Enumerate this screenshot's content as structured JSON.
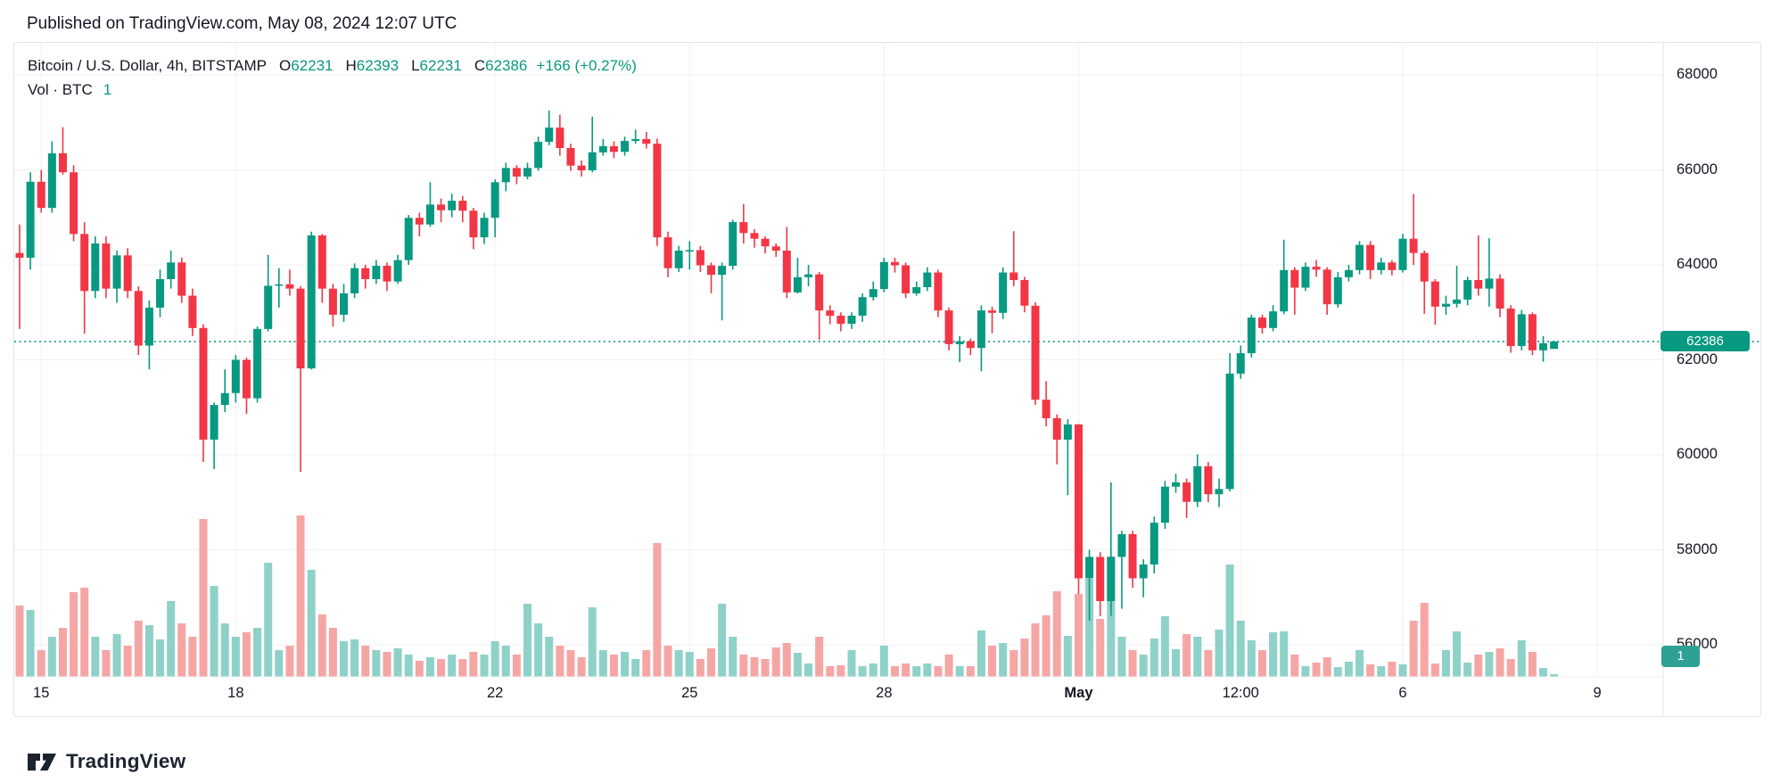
{
  "header": {
    "published_line": "Published on TradingView.com, May 08, 2024 12:07 UTC"
  },
  "legend": {
    "symbol_line": {
      "title": "Bitcoin / U.S. Dollar, 4h, BITSTAMP",
      "o_label": "O",
      "o": "62231",
      "h_label": "H",
      "h": "62393",
      "l_label": "L",
      "l": "62231",
      "c_label": "C",
      "c": "62386",
      "change": "+166 (+0.27%)"
    },
    "volume_line": {
      "label": "Vol · BTC",
      "value": "1"
    }
  },
  "price_axis": {
    "levels": [
      68000,
      66000,
      64000,
      62000,
      60000,
      58000,
      56000
    ],
    "last_price_badge": "62386",
    "volume_badge": "1"
  },
  "time_axis": {
    "ticks": [
      {
        "label": "15",
        "candle_index": 2,
        "bold": false
      },
      {
        "label": "18",
        "candle_index": 20,
        "bold": false
      },
      {
        "label": "22",
        "candle_index": 44,
        "bold": false
      },
      {
        "label": "25",
        "candle_index": 62,
        "bold": false
      },
      {
        "label": "28",
        "candle_index": 80,
        "bold": false
      },
      {
        "label": "May",
        "candle_index": 98,
        "bold": true
      },
      {
        "label": "12:00",
        "candle_index": 113,
        "bold": false
      },
      {
        "label": "6",
        "candle_index": 128,
        "bold": false
      },
      {
        "label": "9",
        "candle_index": 146,
        "bold": false
      }
    ]
  },
  "footer": {
    "brand": "TradingView"
  },
  "colors": {
    "up": "#089981",
    "down": "#f23645",
    "vol_up": "#8ed1c8",
    "vol_down": "#f5a6a4",
    "grid": "#f0f1f4",
    "border": "#e0e3eb",
    "text": "#131722",
    "price_line": "#089981",
    "price_badge_bg": "#089981",
    "vol_badge_bg": "#2da193"
  },
  "chart_data": {
    "type": "candlestick+volume",
    "symbol": "Bitcoin / U.S. Dollar",
    "exchange": "BITSTAMP",
    "interval": "4h",
    "title": "Bitcoin / U.S. Dollar, 4h, BITSTAMP",
    "ohlc_display": {
      "open": 62231,
      "high": 62393,
      "low": 62231,
      "close": 62386,
      "change": 166,
      "change_pct": 0.27
    },
    "last_close": 62386,
    "y_range_visible": [
      54500,
      68700
    ],
    "y_ticks": [
      56000,
      58000,
      60000,
      62000,
      64000,
      66000,
      68000
    ],
    "legend_position": "top-left",
    "grid": true,
    "volume_unit": "BTC (relative height, max=181)",
    "candle_fields": [
      "time",
      "open",
      "high",
      "low",
      "close",
      "vol"
    ],
    "candles": [
      [
        "Apr 14 16:00",
        64250,
        64850,
        62650,
        64150,
        80
      ],
      [
        "Apr 14 20:00",
        64150,
        65950,
        63900,
        65750,
        75
      ],
      [
        "Apr 15 00:00",
        65750,
        66000,
        65100,
        65200,
        30
      ],
      [
        "Apr 15 04:00",
        65200,
        66600,
        65100,
        66350,
        45
      ],
      [
        "Apr 15 08:00",
        66350,
        66900,
        65900,
        65950,
        55
      ],
      [
        "Apr 15 12:00",
        65950,
        66100,
        64500,
        64650,
        95
      ],
      [
        "Apr 15 16:00",
        64650,
        64900,
        62550,
        63450,
        100
      ],
      [
        "Apr 15 20:00",
        63450,
        64600,
        63300,
        64450,
        45
      ],
      [
        "Apr 16 00:00",
        64450,
        64600,
        63300,
        63500,
        30
      ],
      [
        "Apr 16 04:00",
        63500,
        64300,
        63200,
        64200,
        48
      ],
      [
        "Apr 16 08:00",
        64200,
        64350,
        63300,
        63450,
        35
      ],
      [
        "Apr 16 12:00",
        63450,
        63550,
        62100,
        62300,
        63
      ],
      [
        "Apr 16 16:00",
        62300,
        63250,
        61800,
        63100,
        58
      ],
      [
        "Apr 16 20:00",
        63100,
        63900,
        62900,
        63700,
        42
      ],
      [
        "Apr 17 00:00",
        63700,
        64300,
        63500,
        64050,
        85
      ],
      [
        "Apr 17 04:00",
        64050,
        64150,
        63200,
        63350,
        60
      ],
      [
        "Apr 17 08:00",
        63350,
        63500,
        62500,
        62670,
        45
      ],
      [
        "Apr 17 12:00",
        62670,
        62750,
        59850,
        60320,
        177
      ],
      [
        "Apr 17 16:00",
        60320,
        61100,
        59700,
        61050,
        102
      ],
      [
        "Apr 17 20:00",
        61050,
        61800,
        60900,
        61300,
        60
      ],
      [
        "Apr 18 00:00",
        61300,
        62100,
        61100,
        62000,
        45
      ],
      [
        "Apr 18 04:00",
        62000,
        62050,
        60860,
        61190,
        50
      ],
      [
        "Apr 18 08:00",
        61190,
        62700,
        61100,
        62650,
        55
      ],
      [
        "Apr 18 12:00",
        62650,
        64210,
        62600,
        63560,
        128
      ],
      [
        "Apr 18 16:00",
        63560,
        63930,
        63100,
        63590,
        30
      ],
      [
        "Apr 18 20:00",
        63590,
        63900,
        63350,
        63500,
        35
      ],
      [
        "Apr 19 00:00",
        63500,
        63550,
        59640,
        61820,
        181
      ],
      [
        "Apr 19 04:00",
        61820,
        64700,
        61800,
        64620,
        120
      ],
      [
        "Apr 19 08:00",
        64620,
        64650,
        63200,
        63500,
        70
      ],
      [
        "Apr 19 12:00",
        63500,
        63600,
        62700,
        62950,
        55
      ],
      [
        "Apr 19 16:00",
        62950,
        63600,
        62800,
        63400,
        40
      ],
      [
        "Apr 19 20:00",
        63400,
        64030,
        63300,
        63930,
        42
      ],
      [
        "Apr 20 00:00",
        63930,
        64000,
        63500,
        63700,
        35
      ],
      [
        "Apr 20 04:00",
        63700,
        64100,
        63600,
        63980,
        30
      ],
      [
        "Apr 20 08:00",
        63980,
        64050,
        63450,
        63650,
        28
      ],
      [
        "Apr 20 12:00",
        63650,
        64210,
        63600,
        64100,
        32
      ],
      [
        "Apr 20 16:00",
        64100,
        65050,
        64000,
        64990,
        25
      ],
      [
        "Apr 20 20:00",
        64990,
        65100,
        64600,
        64850,
        18
      ],
      [
        "Apr 21 00:00",
        64850,
        65740,
        64800,
        65270,
        22
      ],
      [
        "Apr 21 04:00",
        65270,
        65400,
        64900,
        65150,
        20
      ],
      [
        "Apr 21 08:00",
        65150,
        65500,
        65000,
        65350,
        25
      ],
      [
        "Apr 21 12:00",
        65350,
        65450,
        64900,
        65140,
        20
      ],
      [
        "Apr 21 16:00",
        65140,
        65200,
        64330,
        64580,
        28
      ],
      [
        "Apr 21 20:00",
        64580,
        65100,
        64440,
        64990,
        25
      ],
      [
        "Apr 22 00:00",
        64990,
        65800,
        64580,
        65740,
        40
      ],
      [
        "Apr 22 04:00",
        65740,
        66150,
        65550,
        66040,
        35
      ],
      [
        "Apr 22 08:00",
        66040,
        66100,
        65700,
        65860,
        25
      ],
      [
        "Apr 22 12:00",
        65860,
        66150,
        65800,
        66040,
        82
      ],
      [
        "Apr 22 16:00",
        66040,
        66700,
        65980,
        66590,
        60
      ],
      [
        "Apr 22 20:00",
        66590,
        67250,
        66520,
        66890,
        45
      ],
      [
        "Apr 23 00:00",
        66890,
        67160,
        66300,
        66460,
        35
      ],
      [
        "Apr 23 04:00",
        66460,
        66550,
        65980,
        66090,
        30
      ],
      [
        "Apr 23 08:00",
        66090,
        66200,
        65860,
        65990,
        22
      ],
      [
        "Apr 23 12:00",
        65990,
        67120,
        65950,
        66370,
        78
      ],
      [
        "Apr 23 16:00",
        66370,
        66650,
        66300,
        66500,
        30
      ],
      [
        "Apr 23 20:00",
        66500,
        66600,
        66250,
        66380,
        25
      ],
      [
        "Apr 24 00:00",
        66380,
        66700,
        66300,
        66610,
        28
      ],
      [
        "Apr 24 04:00",
        66610,
        66850,
        66550,
        66650,
        20
      ],
      [
        "Apr 24 08:00",
        66650,
        66800,
        66450,
        66550,
        30
      ],
      [
        "Apr 24 12:00",
        66550,
        66660,
        64400,
        64580,
        150
      ],
      [
        "Apr 24 16:00",
        64580,
        64700,
        63740,
        63930,
        35
      ],
      [
        "Apr 24 20:00",
        63930,
        64400,
        63850,
        64300,
        30
      ],
      [
        "Apr 25 00:00",
        64300,
        64500,
        63900,
        64310,
        28
      ],
      [
        "Apr 25 04:00",
        64310,
        64400,
        63850,
        63990,
        20
      ],
      [
        "Apr 25 08:00",
        63990,
        64050,
        63400,
        63790,
        32
      ],
      [
        "Apr 25 12:00",
        63790,
        64050,
        62830,
        63980,
        82
      ],
      [
        "Apr 25 16:00",
        63980,
        64950,
        63900,
        64900,
        45
      ],
      [
        "Apr 25 20:00",
        64900,
        65280,
        64450,
        64670,
        25
      ],
      [
        "Apr 26 00:00",
        64670,
        64750,
        64360,
        64550,
        22
      ],
      [
        "Apr 26 04:00",
        64550,
        64600,
        64240,
        64390,
        20
      ],
      [
        "Apr 26 08:00",
        64390,
        64450,
        64170,
        64300,
        33
      ],
      [
        "Apr 26 12:00",
        64300,
        64800,
        63300,
        63420,
        38
      ],
      [
        "Apr 26 16:00",
        63420,
        64150,
        63400,
        63740,
        27
      ],
      [
        "Apr 26 20:00",
        63740,
        64000,
        63550,
        63800,
        15
      ],
      [
        "Apr 27 00:00",
        63800,
        63850,
        62420,
        63040,
        45
      ],
      [
        "Apr 27 04:00",
        63040,
        63150,
        62750,
        62930,
        12
      ],
      [
        "Apr 27 08:00",
        62930,
        63000,
        62600,
        62760,
        13
      ],
      [
        "Apr 27 12:00",
        62760,
        63000,
        62650,
        62930,
        30
      ],
      [
        "Apr 27 16:00",
        62930,
        63400,
        62800,
        63320,
        12
      ],
      [
        "Apr 27 20:00",
        63320,
        63650,
        63250,
        63490,
        15
      ],
      [
        "Apr 28 00:00",
        63490,
        64150,
        63420,
        64060,
        35
      ],
      [
        "Apr 28 04:00",
        64060,
        64150,
        63840,
        63990,
        12
      ],
      [
        "Apr 28 08:00",
        63990,
        64050,
        63300,
        63400,
        15
      ],
      [
        "Apr 28 12:00",
        63400,
        63650,
        63350,
        63530,
        12
      ],
      [
        "Apr 28 16:00",
        63530,
        63950,
        63450,
        63840,
        15
      ],
      [
        "Apr 28 20:00",
        63840,
        63900,
        62900,
        63040,
        12
      ],
      [
        "Apr 29 00:00",
        63040,
        63100,
        62200,
        62330,
        25
      ],
      [
        "Apr 29 04:00",
        62330,
        62500,
        61950,
        62390,
        12
      ],
      [
        "Apr 29 08:00",
        62390,
        62450,
        62100,
        62250,
        12
      ],
      [
        "Apr 29 12:00",
        62250,
        63150,
        61760,
        63040,
        52
      ],
      [
        "Apr 29 16:00",
        63040,
        63120,
        62560,
        62990,
        35
      ],
      [
        "Apr 29 20:00",
        62990,
        63950,
        62860,
        63840,
        38
      ],
      [
        "Apr 30 00:00",
        63840,
        64710,
        63550,
        63680,
        30
      ],
      [
        "Apr 30 04:00",
        63680,
        63750,
        63000,
        63140,
        43
      ],
      [
        "Apr 30 08:00",
        63140,
        63210,
        61050,
        61160,
        60
      ],
      [
        "Apr 30 12:00",
        61160,
        61550,
        60600,
        60770,
        69
      ],
      [
        "Apr 30 16:00",
        60770,
        60850,
        59800,
        60320,
        96
      ],
      [
        "Apr 30 20:00",
        60320,
        60750,
        59150,
        60640,
        46
      ],
      [
        "May 1 00:00",
        60640,
        60650,
        57070,
        57400,
        93
      ],
      [
        "May 1 04:00",
        57400,
        58000,
        56510,
        57850,
        110
      ],
      [
        "May 1 08:00",
        57850,
        57950,
        56600,
        56920,
        65
      ],
      [
        "May 1 12:00",
        56920,
        59420,
        56610,
        57850,
        135
      ],
      [
        "May 1 16:00",
        57850,
        58400,
        56760,
        58330,
        45
      ],
      [
        "May 1 20:00",
        58330,
        58400,
        57200,
        57400,
        30
      ],
      [
        "May 2 00:00",
        57400,
        57800,
        57000,
        57690,
        25
      ],
      [
        "May 2 04:00",
        57690,
        58700,
        57500,
        58570,
        43
      ],
      [
        "May 2 08:00",
        58570,
        59450,
        58440,
        59330,
        68
      ],
      [
        "May 2 12:00",
        59330,
        59600,
        59200,
        59420,
        31
      ],
      [
        "May 2 16:00",
        59420,
        59500,
        58670,
        59010,
        48
      ],
      [
        "May 2 20:00",
        59010,
        60010,
        58900,
        59760,
        45
      ],
      [
        "May 3 00:00",
        59760,
        59850,
        59000,
        59170,
        30
      ],
      [
        "May 3 04:00",
        59170,
        59500,
        58900,
        59280,
        53
      ],
      [
        "May 3 08:00",
        59280,
        62140,
        59230,
        61710,
        126
      ],
      [
        "May 3 12:00",
        61710,
        62300,
        61600,
        62140,
        63
      ],
      [
        "May 3 16:00",
        62140,
        62950,
        62050,
        62890,
        41
      ],
      [
        "May 3 20:00",
        62890,
        62950,
        62550,
        62670,
        30
      ],
      [
        "May 4 00:00",
        62670,
        63150,
        62600,
        63020,
        50
      ],
      [
        "May 4 04:00",
        63020,
        64530,
        62960,
        63890,
        51
      ],
      [
        "May 4 08:00",
        63890,
        63950,
        62950,
        63520,
        25
      ],
      [
        "May 4 12:00",
        63520,
        64050,
        63450,
        63960,
        12
      ],
      [
        "May 4 16:00",
        63960,
        64100,
        63750,
        63900,
        16
      ],
      [
        "May 4 20:00",
        63900,
        63950,
        62950,
        63170,
        22
      ],
      [
        "May 5 00:00",
        63170,
        63850,
        63100,
        63740,
        11
      ],
      [
        "May 5 04:00",
        63740,
        64000,
        63650,
        63890,
        17
      ],
      [
        "May 5 08:00",
        63890,
        64500,
        63800,
        64420,
        30
      ],
      [
        "May 5 12:00",
        64420,
        64500,
        63700,
        63890,
        14
      ],
      [
        "May 5 16:00",
        63890,
        64150,
        63800,
        64050,
        12
      ],
      [
        "May 5 20:00",
        64050,
        64100,
        63780,
        63890,
        17
      ],
      [
        "May 6 00:00",
        63890,
        64650,
        63840,
        64550,
        14
      ],
      [
        "May 6 04:00",
        64550,
        65490,
        64000,
        64250,
        63
      ],
      [
        "May 6 08:00",
        64250,
        64300,
        62970,
        63650,
        83
      ],
      [
        "May 6 12:00",
        63650,
        63700,
        62740,
        63120,
        15
      ],
      [
        "May 6 16:00",
        63120,
        63350,
        62950,
        63180,
        30
      ],
      [
        "May 6 20:00",
        63180,
        63980,
        63100,
        63270,
        51
      ],
      [
        "May 7 00:00",
        63270,
        63750,
        63150,
        63680,
        16
      ],
      [
        "May 7 04:00",
        63680,
        64620,
        63350,
        63500,
        25
      ],
      [
        "May 7 08:00",
        63500,
        64560,
        63120,
        63710,
        28
      ],
      [
        "May 7 12:00",
        63710,
        63800,
        62900,
        63080,
        32
      ],
      [
        "May 7 16:00",
        63080,
        63150,
        62150,
        62290,
        20
      ],
      [
        "May 7 20:00",
        62290,
        63050,
        62200,
        62960,
        41
      ],
      [
        "May 8 00:00",
        62960,
        63000,
        62100,
        62200,
        28
      ],
      [
        "May 8 04:00",
        62200,
        62500,
        61960,
        62350,
        10
      ],
      [
        "May 8 08:00",
        62231,
        62393,
        62231,
        62386,
        3
      ]
    ]
  }
}
